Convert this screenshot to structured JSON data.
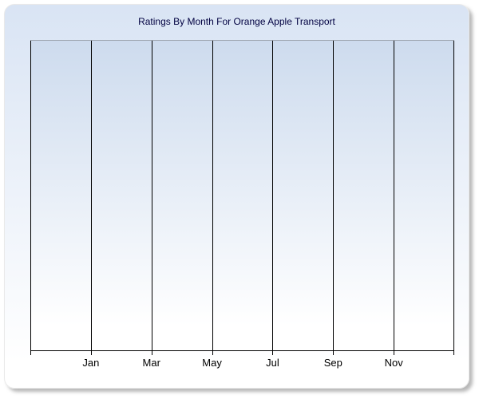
{
  "chart": {
    "title": "Ratings By Month For Orange Apple Transport",
    "x_tick_labels": [
      "Jan",
      "Mar",
      "May",
      "Jul",
      "Sep",
      "Nov"
    ],
    "gridline_count": 8,
    "first_labeled_gridline_index": 1
  },
  "chart_data": {
    "type": "line",
    "title": "Ratings By Month For Orange Apple Transport",
    "x_tick_labels": [
      "Jan",
      "Mar",
      "May",
      "Jul",
      "Sep",
      "Nov"
    ],
    "series": [],
    "plot_area_empty": true,
    "grid": "vertical-gridlines-only",
    "legend": "none",
    "y_axis_labels": "none"
  },
  "colors": {
    "panel_top": "#d9e4f4",
    "panel_bottom": "#ffffff",
    "plot_top": "#cddbee",
    "plot_bottom": "#ffffff",
    "gridline": "#000000",
    "plot_top_border": "#9aa1ab",
    "axis": "#000000",
    "title_text": "#000040",
    "tick_label": "#000000",
    "page_bg": "#ffffff"
  }
}
